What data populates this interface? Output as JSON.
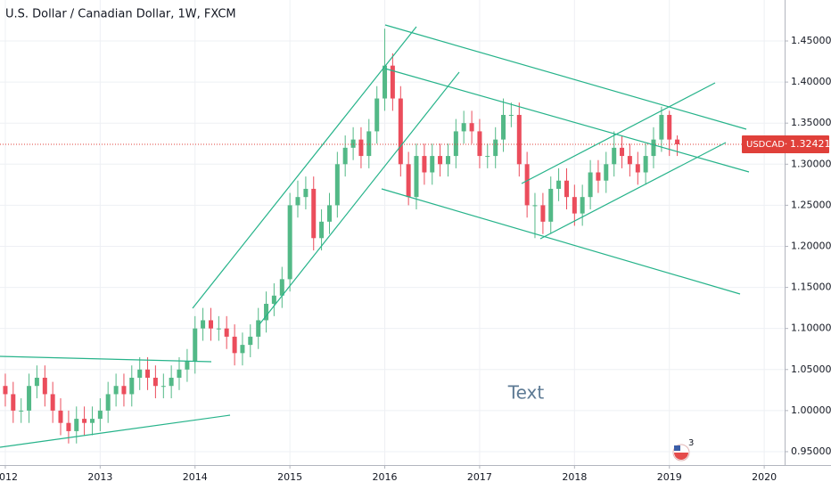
{
  "chart_data": {
    "type": "candlestick",
    "title": "U.S. Dollar / Canadian Dollar, 1W, FXCM",
    "up_color": "#53b987",
    "down_color": "#eb4d5c",
    "grid": true,
    "xlim": [
      2011.944,
      2020.215
    ],
    "xticks": [
      2012,
      2013,
      2014,
      2015,
      2016,
      2017,
      2018,
      2019,
      2020
    ],
    "ylim": [
      0.9337,
      1.4999
    ],
    "yticks": [
      {
        "value": 0.95,
        "label": "0.95000"
      },
      {
        "value": 1.0,
        "label": "1.00000"
      },
      {
        "value": 1.05,
        "label": "1.05000"
      },
      {
        "value": 1.1,
        "label": "1.10000"
      },
      {
        "value": 1.15,
        "label": "1.15000"
      },
      {
        "value": 1.2,
        "label": "1.20000"
      },
      {
        "value": 1.25,
        "label": "1.25000"
      },
      {
        "value": 1.3,
        "label": "1.30000"
      },
      {
        "value": 1.35,
        "label": "1.35000"
      },
      {
        "value": 1.4,
        "label": "1.40000"
      },
      {
        "value": 1.45,
        "label": "1.45000"
      }
    ],
    "x": [
      2012,
      2012.083,
      2012.167,
      2012.25,
      2012.333,
      2012.417,
      2012.5,
      2012.583,
      2012.667,
      2012.75,
      2012.833,
      2012.917,
      2013,
      2013.083,
      2013.167,
      2013.25,
      2013.333,
      2013.417,
      2013.5,
      2013.583,
      2013.667,
      2013.75,
      2013.833,
      2013.917,
      2014,
      2014.083,
      2014.167,
      2014.25,
      2014.333,
      2014.417,
      2014.5,
      2014.583,
      2014.667,
      2014.75,
      2014.833,
      2014.917,
      2015,
      2015.083,
      2015.167,
      2015.25,
      2015.333,
      2015.417,
      2015.5,
      2015.583,
      2015.667,
      2015.75,
      2015.833,
      2015.917,
      2016,
      2016.083,
      2016.167,
      2016.25,
      2016.333,
      2016.417,
      2016.5,
      2016.583,
      2016.667,
      2016.75,
      2016.833,
      2016.917,
      2017,
      2017.083,
      2017.167,
      2017.25,
      2017.333,
      2017.417,
      2017.5,
      2017.583,
      2017.667,
      2017.75,
      2017.833,
      2017.917,
      2018,
      2018.083,
      2018.167,
      2018.25,
      2018.333,
      2018.417,
      2018.5,
      2018.583,
      2018.667,
      2018.75,
      2018.833,
      2018.917,
      2019,
      2019.083
    ],
    "open": [
      1.03,
      1.02,
      1.0,
      1.0,
      1.03,
      1.04,
      1.02,
      1.0,
      0.985,
      0.975,
      0.99,
      0.985,
      0.99,
      1.0,
      1.02,
      1.03,
      1.02,
      1.04,
      1.05,
      1.04,
      1.03,
      1.03,
      1.04,
      1.05,
      1.06,
      1.1,
      1.11,
      1.1,
      1.1,
      1.09,
      1.07,
      1.08,
      1.09,
      1.11,
      1.13,
      1.14,
      1.16,
      1.25,
      1.26,
      1.27,
      1.21,
      1.23,
      1.25,
      1.3,
      1.32,
      1.33,
      1.31,
      1.34,
      1.38,
      1.42,
      1.38,
      1.3,
      1.26,
      1.31,
      1.29,
      1.31,
      1.3,
      1.31,
      1.34,
      1.35,
      1.34,
      1.31,
      1.31,
      1.33,
      1.36,
      1.36,
      1.3,
      1.25,
      1.25,
      1.23,
      1.27,
      1.28,
      1.26,
      1.24,
      1.26,
      1.29,
      1.28,
      1.3,
      1.32,
      1.31,
      1.3,
      1.29,
      1.31,
      1.33,
      1.36,
      1.33
    ],
    "high": [
      1.045,
      1.035,
      1.015,
      1.045,
      1.055,
      1.055,
      1.035,
      1.015,
      1.0,
      1.005,
      1.005,
      1.005,
      1.015,
      1.035,
      1.045,
      1.045,
      1.055,
      1.065,
      1.065,
      1.055,
      1.045,
      1.055,
      1.065,
      1.075,
      1.115,
      1.125,
      1.125,
      1.115,
      1.115,
      1.105,
      1.095,
      1.105,
      1.125,
      1.145,
      1.155,
      1.175,
      1.265,
      1.28,
      1.285,
      1.285,
      1.245,
      1.265,
      1.315,
      1.335,
      1.345,
      1.345,
      1.355,
      1.395,
      1.465,
      1.435,
      1.395,
      1.315,
      1.325,
      1.325,
      1.325,
      1.325,
      1.325,
      1.355,
      1.365,
      1.365,
      1.355,
      1.325,
      1.345,
      1.38,
      1.375,
      1.375,
      1.315,
      1.265,
      1.265,
      1.285,
      1.295,
      1.295,
      1.275,
      1.275,
      1.305,
      1.305,
      1.315,
      1.34,
      1.335,
      1.325,
      1.315,
      1.325,
      1.345,
      1.37,
      1.365,
      1.335
    ],
    "low": [
      1.005,
      0.985,
      0.985,
      0.985,
      1.015,
      1.005,
      0.985,
      0.97,
      0.96,
      0.96,
      0.97,
      0.97,
      0.975,
      0.985,
      1.005,
      1.005,
      1.005,
      1.025,
      1.025,
      1.015,
      1.015,
      1.015,
      1.025,
      1.035,
      1.045,
      1.085,
      1.085,
      1.085,
      1.075,
      1.055,
      1.055,
      1.065,
      1.075,
      1.095,
      1.115,
      1.125,
      1.145,
      1.235,
      1.245,
      1.195,
      1.195,
      1.215,
      1.235,
      1.285,
      1.305,
      1.295,
      1.295,
      1.325,
      1.365,
      1.365,
      1.285,
      1.25,
      1.245,
      1.275,
      1.275,
      1.285,
      1.285,
      1.295,
      1.325,
      1.325,
      1.295,
      1.295,
      1.295,
      1.315,
      1.345,
      1.285,
      1.235,
      1.21,
      1.215,
      1.215,
      1.255,
      1.245,
      1.225,
      1.225,
      1.245,
      1.265,
      1.265,
      1.285,
      1.295,
      1.285,
      1.275,
      1.275,
      1.295,
      1.315,
      1.31,
      1.31
    ],
    "close": [
      1.02,
      1.0,
      1.0,
      1.03,
      1.04,
      1.02,
      1.0,
      0.985,
      0.975,
      0.99,
      0.985,
      0.99,
      1.0,
      1.02,
      1.03,
      1.02,
      1.04,
      1.05,
      1.04,
      1.03,
      1.03,
      1.04,
      1.05,
      1.06,
      1.1,
      1.11,
      1.1,
      1.1,
      1.09,
      1.07,
      1.08,
      1.09,
      1.11,
      1.13,
      1.14,
      1.16,
      1.25,
      1.26,
      1.27,
      1.21,
      1.23,
      1.25,
      1.3,
      1.32,
      1.33,
      1.31,
      1.34,
      1.38,
      1.42,
      1.38,
      1.3,
      1.26,
      1.31,
      1.29,
      1.31,
      1.3,
      1.31,
      1.34,
      1.35,
      1.34,
      1.31,
      1.31,
      1.33,
      1.36,
      1.36,
      1.3,
      1.25,
      1.25,
      1.23,
      1.27,
      1.28,
      1.26,
      1.24,
      1.26,
      1.29,
      1.28,
      1.3,
      1.32,
      1.31,
      1.3,
      1.29,
      1.31,
      1.33,
      1.36,
      1.33,
      1.3242
    ],
    "last_price": {
      "symbol": "USDCAD",
      "value": 1.32421
    },
    "annotation": "Text",
    "events_badge": "3"
  }
}
